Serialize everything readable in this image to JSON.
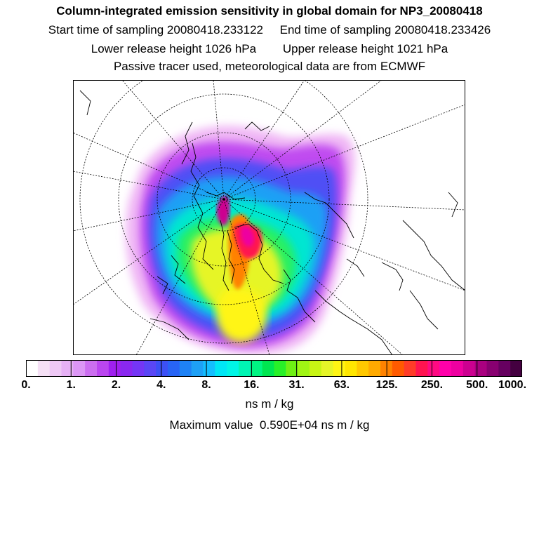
{
  "header": {
    "title": "Column-integrated emission sensitivity in global domain for NP3_20080418",
    "start_label": "Start time of sampling 20080418.233122",
    "end_label": "End time of sampling 20080418.233426",
    "lower_label": "Lower release height 1026 hPa",
    "upper_label": "Upper release height 1021 hPa",
    "tracer_note": "Passive tracer used, meteorological data are from ECMWF"
  },
  "colorbar": {
    "colors": [
      "#ffffff",
      "#f5e0f5",
      "#eec8f5",
      "#e6b0f5",
      "#dc96f5",
      "#cc6ef0",
      "#bb46f0",
      "#a020f0",
      "#8a28f0",
      "#7436f5",
      "#5a46f5",
      "#3c50f5",
      "#2864f5",
      "#1e82f5",
      "#1ea0f5",
      "#14beff",
      "#00e6f5",
      "#00f5e6",
      "#00f5b4",
      "#00f582",
      "#00e650",
      "#28f028",
      "#6ef014",
      "#a0f514",
      "#c8f514",
      "#e6f528",
      "#fff514",
      "#ffe600",
      "#ffc800",
      "#ffaa00",
      "#ff8200",
      "#ff5a00",
      "#ff3c28",
      "#ff1450",
      "#ff0a82",
      "#ff00aa",
      "#ee00a0",
      "#cc0090",
      "#aa0080",
      "#880070",
      "#660060",
      "#440040"
    ],
    "tick_labels": [
      "0.",
      "1.",
      "2.",
      "4.",
      "8.",
      "16.",
      "31.",
      "63.",
      "125.",
      "250.",
      "500.",
      "1000."
    ],
    "unit": "ns m / kg"
  },
  "max_value_text": "Maximum value  0.590E+04 ns m / kg"
}
